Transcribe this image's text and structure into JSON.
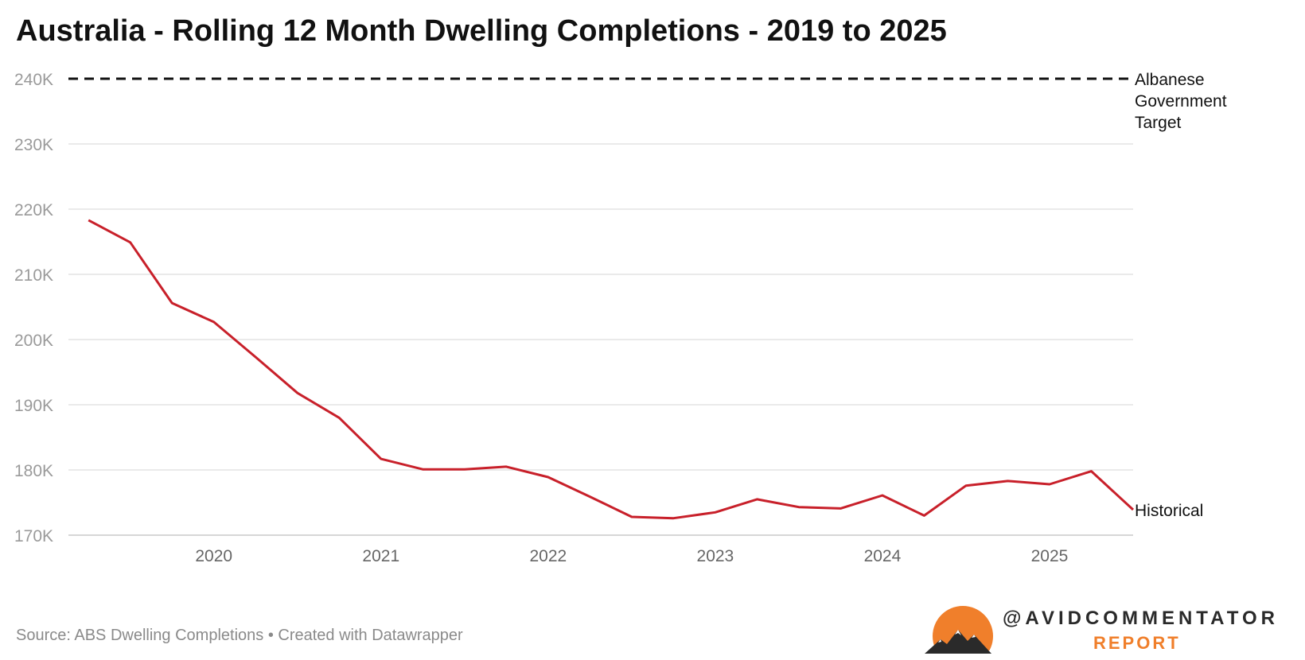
{
  "chart_data": {
    "type": "line",
    "title": "Australia - Rolling 12 Month Dwelling Completions - 2019 to 2025",
    "source": "Source: ABS Dwelling Completions • Created with Datawrapper",
    "xlabel": "",
    "ylabel": "",
    "ylim": [
      170000,
      240000
    ],
    "xlim": [
      2019.13,
      2025.5
    ],
    "y_ticks": [
      {
        "value": 170000,
        "label": "170K"
      },
      {
        "value": 180000,
        "label": "180K"
      },
      {
        "value": 190000,
        "label": "190K"
      },
      {
        "value": 200000,
        "label": "200K"
      },
      {
        "value": 210000,
        "label": "210K"
      },
      {
        "value": 220000,
        "label": "220K"
      },
      {
        "value": 230000,
        "label": "230K"
      },
      {
        "value": 240000,
        "label": "240K"
      }
    ],
    "x_ticks": [
      {
        "value": 2020,
        "label": "2020"
      },
      {
        "value": 2021,
        "label": "2021"
      },
      {
        "value": 2022,
        "label": "2022"
      },
      {
        "value": 2023,
        "label": "2023"
      },
      {
        "value": 2024,
        "label": "2024"
      },
      {
        "value": 2025,
        "label": "2025"
      }
    ],
    "grid": true,
    "series": [
      {
        "name": "Historical",
        "label": "Historical",
        "color": "#c8202a",
        "style": "solid",
        "x": [
          2019.25,
          2019.5,
          2019.75,
          2020.0,
          2020.25,
          2020.5,
          2020.75,
          2021.0,
          2021.25,
          2021.5,
          2021.75,
          2022.0,
          2022.25,
          2022.5,
          2022.75,
          2023.0,
          2023.25,
          2023.5,
          2023.75,
          2024.0,
          2024.25,
          2024.5,
          2024.75,
          2025.0,
          2025.25,
          2025.5
        ],
        "values": [
          218300,
          214900,
          205600,
          202700,
          197300,
          191800,
          188000,
          181700,
          180100,
          180100,
          180500,
          178900,
          175900,
          172800,
          172600,
          173500,
          175500,
          174300,
          174100,
          176100,
          173000,
          177600,
          178300,
          177800,
          179800,
          173900
        ]
      },
      {
        "name": "Albanese Government Target",
        "label_lines": [
          "Albanese",
          "Government",
          "Target"
        ],
        "color": "#111111",
        "style": "dashed",
        "x": [
          2019.13,
          2025.5
        ],
        "values": [
          240000,
          240000
        ]
      }
    ]
  },
  "brand": {
    "handle": "@AVIDCOMMENTATOR",
    "report": "REPORT",
    "accent": "#f07f2b"
  }
}
